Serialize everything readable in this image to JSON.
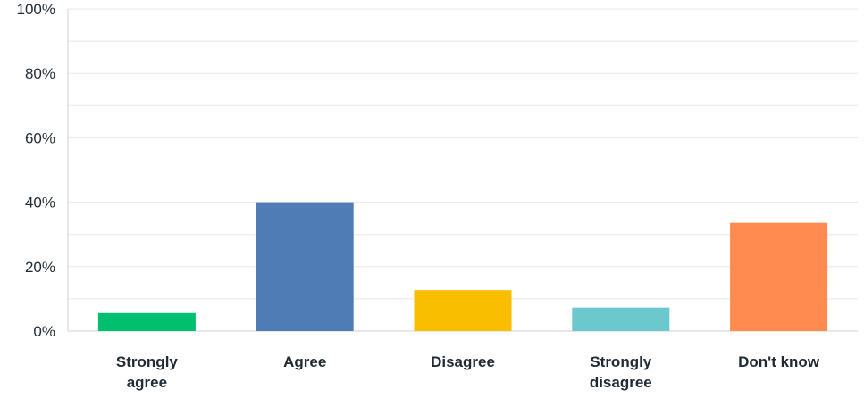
{
  "chart_data": {
    "type": "bar",
    "categories": [
      [
        "Strongly",
        "agree"
      ],
      [
        "Agree"
      ],
      [
        "Disagree"
      ],
      [
        "Strongly",
        "disagree"
      ],
      [
        "Don't know"
      ]
    ],
    "values": [
      5.6,
      40.0,
      12.7,
      7.3,
      33.6
    ],
    "colors": [
      "#00bf6f",
      "#507cb6",
      "#f9be00",
      "#6bc8cd",
      "#ff8b4f"
    ],
    "yticks": [
      "0%",
      "20%",
      "40%",
      "60%",
      "80%",
      "100%"
    ],
    "ylim": [
      0,
      100
    ],
    "title": "",
    "xlabel": "",
    "ylabel": "",
    "grid": true,
    "gridline_color": "#e8e8e8",
    "axis_color": "#d0d0d0"
  }
}
